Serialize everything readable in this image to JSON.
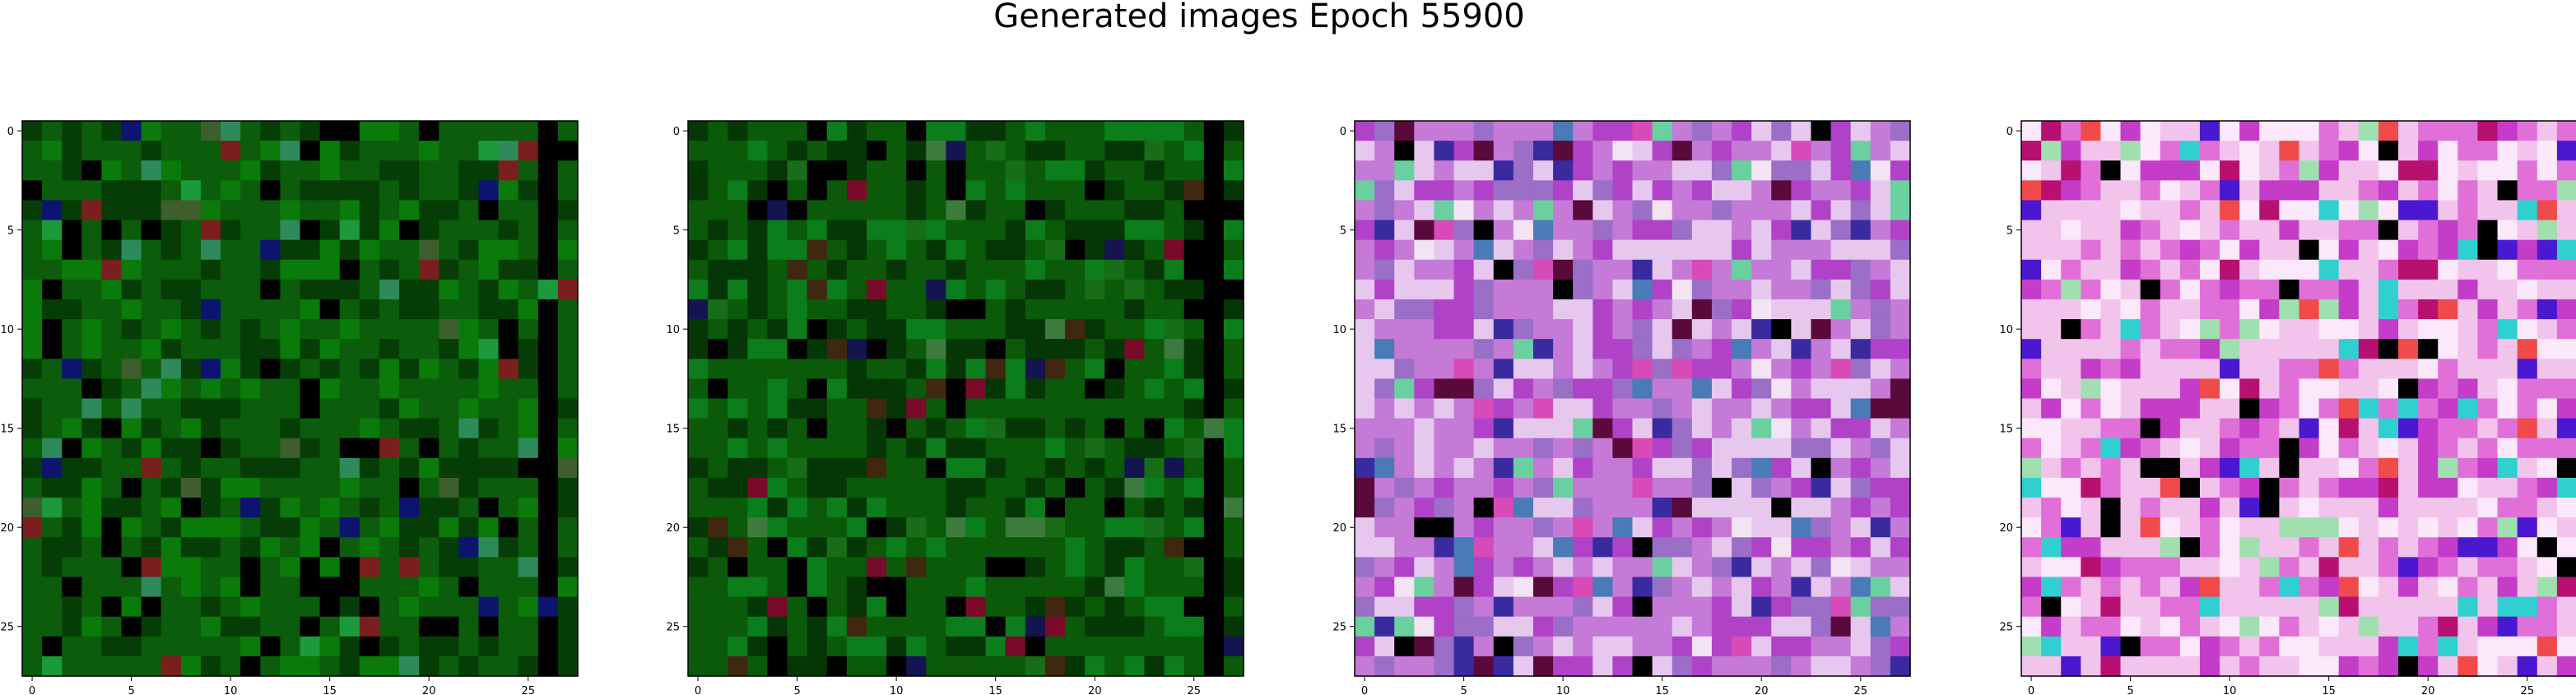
{
  "figure": {
    "title": "Generated images Epoch 55900"
  },
  "chart_data": {
    "type": "heatmap",
    "title": "Generated images Epoch 55900",
    "grid": false,
    "rows": 28,
    "cols": 28,
    "xlim": [
      -0.5,
      27.5
    ],
    "ylim": [
      27.5,
      -0.5
    ],
    "xticks": [
      0,
      5,
      10,
      15,
      20,
      25
    ],
    "yticks": [
      0,
      5,
      10,
      15,
      20,
      25
    ],
    "panels": [
      {
        "palette": "green",
        "colors": [
          "#0b5c0b",
          "#063d06",
          "#0a7a0a",
          "#000000",
          "#1a9a3a",
          "#2e8a5a",
          "#0c1470",
          "#7a1e1e",
          "#3e5e2e"
        ]
      },
      {
        "palette": "green",
        "colors": [
          "#0a5a0a",
          "#053605",
          "#0b7d1b",
          "#000000",
          "#186e18",
          "#402810",
          "#7a0a2a",
          "#141450",
          "#3d7a3d"
        ]
      },
      {
        "palette": "magenta",
        "colors": [
          "#c47ad6",
          "#e6c8ef",
          "#b042c8",
          "#9b6ec8",
          "#f2e4f2",
          "#d84ab8",
          "#5a0a3a",
          "#4a7ab8",
          "#000000",
          "#6ad0a0",
          "#3a2aa0"
        ]
      },
      {
        "palette": "magenta",
        "colors": [
          "#f2c4ec",
          "#e070d8",
          "#fbe8fb",
          "#c43cc8",
          "#b81070",
          "#4a18d0",
          "#f04a4a",
          "#30d0d0",
          "#a0e0b0",
          "#000000"
        ]
      }
    ]
  }
}
